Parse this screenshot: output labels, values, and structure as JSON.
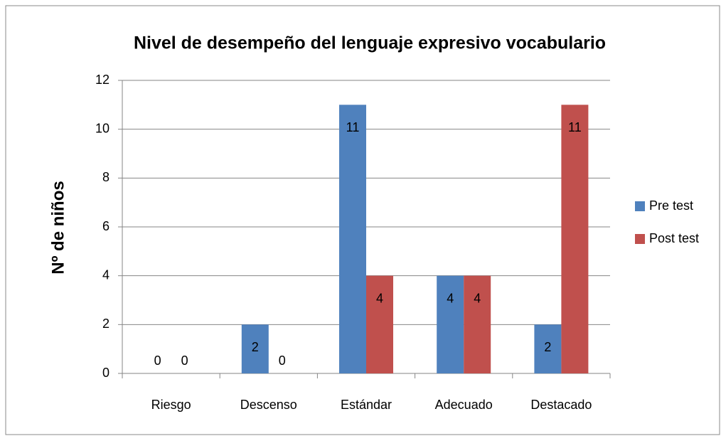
{
  "chart_data": {
    "type": "bar",
    "title": "Nivel de desempeño del lenguaje expresivo vocabulario",
    "y_label": "Nº de niños",
    "categories": [
      "Riesgo",
      "Descenso",
      "Estándar",
      "Adecuado",
      "Destacado"
    ],
    "series": [
      {
        "name": "Pre test",
        "color": "#4f81bd",
        "values": [
          0,
          2,
          11,
          4,
          2
        ]
      },
      {
        "name": "Post test",
        "color": "#c0504d",
        "values": [
          0,
          0,
          4,
          4,
          11
        ]
      }
    ],
    "ylim": [
      0,
      12
    ],
    "yticks": [
      0,
      2,
      4,
      6,
      8,
      10,
      12
    ],
    "grid": true,
    "legend": "right"
  }
}
